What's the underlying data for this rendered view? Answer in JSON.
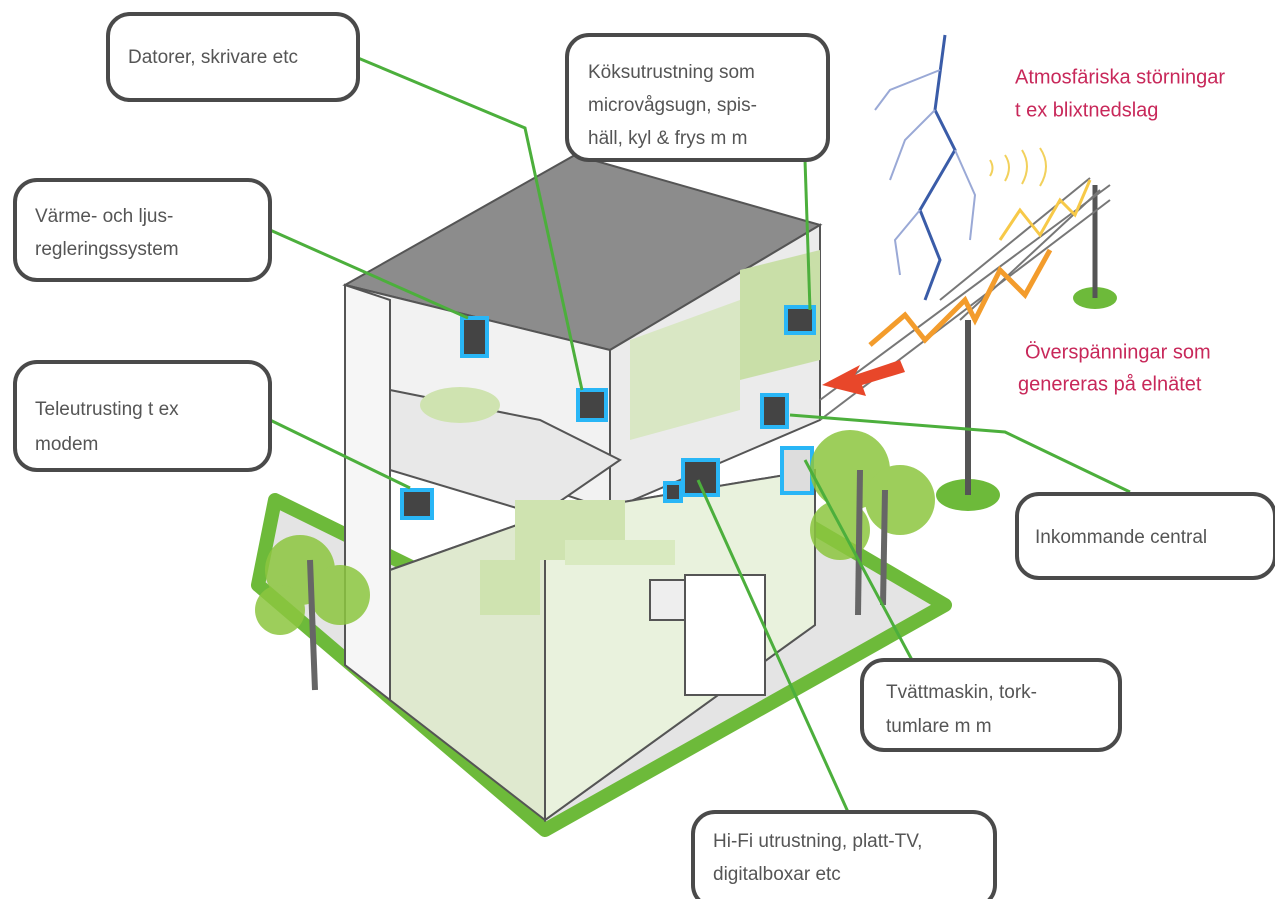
{
  "callouts": [
    {
      "lines": [
        "Datorer, skrivare etc"
      ]
    },
    {
      "lines": [
        "Köksutrustning som",
        "microvågsugn, spis-",
        "häll, kyl & frys m m"
      ]
    },
    {
      "lines": [
        "Värme- och ljus-",
        "regleringssystem"
      ]
    },
    {
      "lines": [
        "Teleutrusting t ex",
        "modem"
      ]
    },
    {
      "lines": [
        "Inkommande central"
      ]
    },
    {
      "lines": [
        "Tvättmaskin, tork-",
        "tumlare m m"
      ]
    },
    {
      "lines": [
        "Hi-Fi utrustning, platt-TV,",
        "digitalboxar etc"
      ]
    }
  ],
  "notes": [
    {
      "lines": [
        "Atmosfäriska störningar",
        "t ex blixtnedslag"
      ]
    },
    {
      "lines": [
        "Överspänningar som",
        "genereras på elnätet"
      ]
    }
  ]
}
